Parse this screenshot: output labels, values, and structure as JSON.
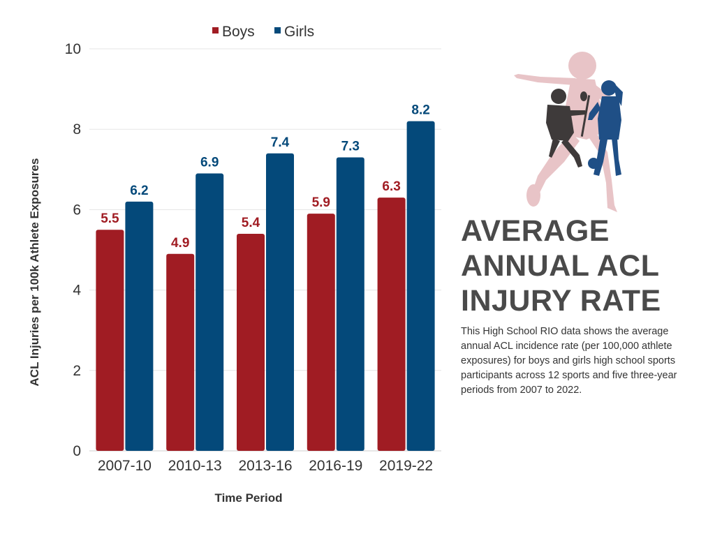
{
  "colors": {
    "boys": "#a01c23",
    "girls": "#04497a",
    "gridline": "#e5e5e5",
    "headline": "#4a4a4a",
    "silhouette_pink": "#e8c4c7",
    "silhouette_dark": "#3e3a3a",
    "silhouette_blue": "#1f4f86"
  },
  "chart_data": {
    "type": "bar",
    "categories": [
      "2007-10",
      "2010-13",
      "2013-16",
      "2016-19",
      "2019-22"
    ],
    "series": [
      {
        "name": "Boys",
        "values": [
          5.5,
          4.9,
          5.4,
          5.9,
          6.3
        ],
        "value_labels": [
          "5.5",
          "4.9",
          "5.4",
          "5.9",
          "6.3"
        ]
      },
      {
        "name": "Girls",
        "values": [
          6.2,
          6.9,
          7.4,
          7.3,
          8.2
        ],
        "value_labels": [
          "6.2",
          "6.9",
          "7.4",
          "7.3",
          "8.2"
        ]
      }
    ],
    "ylim": [
      0,
      10
    ],
    "yticks": [
      "0",
      "2",
      "4",
      "6",
      "8",
      "10"
    ],
    "xlabel": "Time Period",
    "ylabel": "ACL Injuries per 100k Athlete Exposures",
    "legend_position": "top-center",
    "grid": true
  },
  "info": {
    "title_lines": [
      "AVERAGE",
      "ANNUAL ACL",
      "INJURY RATE"
    ],
    "description": "This High School RIO data shows the average annual ACL incidence rate (per 100,000 athlete exposures) for boys and girls high school sports participants across 12 sports and five three-year periods from 2007 to 2022."
  },
  "illustration": {
    "icon": "athletes-silhouette-icon"
  }
}
